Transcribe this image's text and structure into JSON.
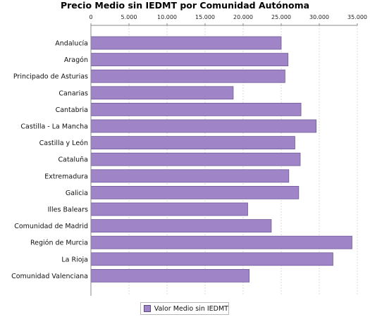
{
  "chart_data": {
    "type": "bar",
    "orientation": "horizontal",
    "title": "Precio Medio sin IEDMT por Comunidad Autónoma",
    "xlim": [
      0,
      35000
    ],
    "xticks": [
      "0",
      "5.000",
      "10.000",
      "15.000",
      "20.000",
      "25.000",
      "30.000",
      "35.000"
    ],
    "xtick_values": [
      0,
      5000,
      10000,
      15000,
      20000,
      25000,
      30000,
      35000
    ],
    "x_axis_position": "top",
    "grid": true,
    "legend_position": "bottom",
    "categories": [
      "Andalucía",
      "Aragón",
      "Principado de Asturias",
      "Canarias",
      "Cantabria",
      "Castilla - La Mancha",
      "Castilla y León",
      "Cataluña",
      "Extremadura",
      "Galicia",
      "Illes Balears",
      "Comunidad de Madrid",
      "Región de Murcia",
      "La Rioja",
      "Comunidad Valenciana"
    ],
    "series": [
      {
        "name": "Valor Medio sin IEDMT",
        "color": "#a084c8",
        "values": [
          25000,
          25900,
          25500,
          18700,
          27600,
          29600,
          26800,
          27500,
          26000,
          27300,
          20600,
          23700,
          34300,
          31800,
          20800
        ]
      }
    ]
  }
}
